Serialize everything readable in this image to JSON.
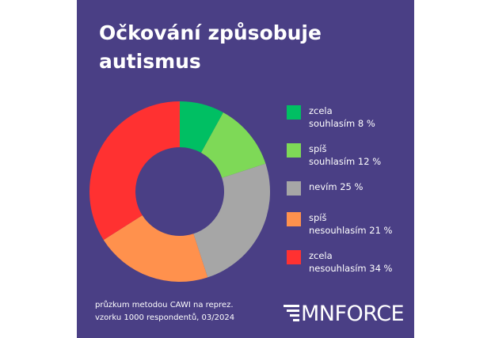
{
  "chart_data": {
    "type": "donut",
    "title": "Očkování způsobuje autismus",
    "categories": [
      "zcela\nsouhlasím",
      "spíš\nsouhlasím",
      "nevím",
      "spíš\nnesouhlasím",
      "zcela\nnesouhlasím"
    ],
    "values": [
      8,
      12,
      25,
      21,
      34
    ],
    "value_labels": [
      "8 %",
      "12 %",
      "25 %",
      "21 %",
      "34 %"
    ],
    "colors": [
      "#00bf63",
      "#7ed957",
      "#a6a6a6",
      "#ff914d",
      "#ff3131"
    ],
    "footnote": "průzkum metodou CAWI na reprez. vzorku 1000 respondentů, 03/2024",
    "logo": "MNFORCE"
  }
}
